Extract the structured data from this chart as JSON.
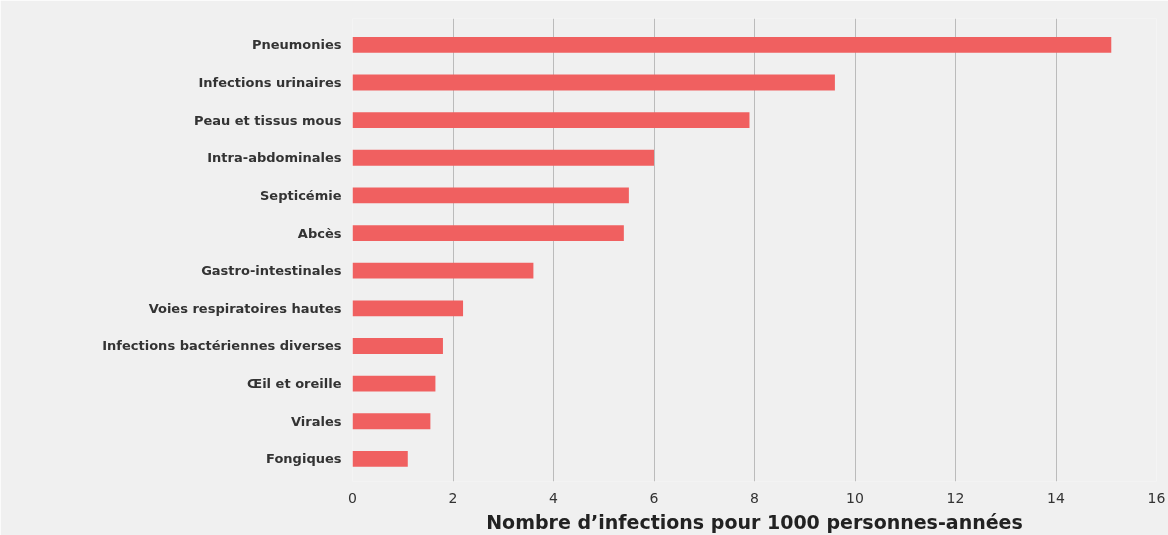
{
  "chart_data": {
    "type": "bar",
    "orientation": "horizontal",
    "xlabel": "Nombre d’infections pour 1000 personnes-années",
    "categories": [
      "Pneumonies",
      "Infections urinaires",
      "Peau et tissus mous",
      "Intra-abdominales",
      "Septicémie",
      "Abcès",
      "Gastro-intestinales",
      "Voies respiratoires hautes",
      "Infections bactériennes diverses",
      "Œil et oreille",
      "Virales",
      "Fongiques"
    ],
    "values": [
      15.1,
      9.6,
      7.9,
      6.0,
      5.5,
      5.4,
      3.6,
      2.2,
      1.8,
      1.65,
      1.55,
      1.1
    ],
    "color": "#f06060",
    "xlim": [
      0,
      16
    ],
    "xticks": [
      0,
      2,
      4,
      6,
      8,
      10,
      12,
      14,
      16
    ],
    "grid": "x"
  }
}
